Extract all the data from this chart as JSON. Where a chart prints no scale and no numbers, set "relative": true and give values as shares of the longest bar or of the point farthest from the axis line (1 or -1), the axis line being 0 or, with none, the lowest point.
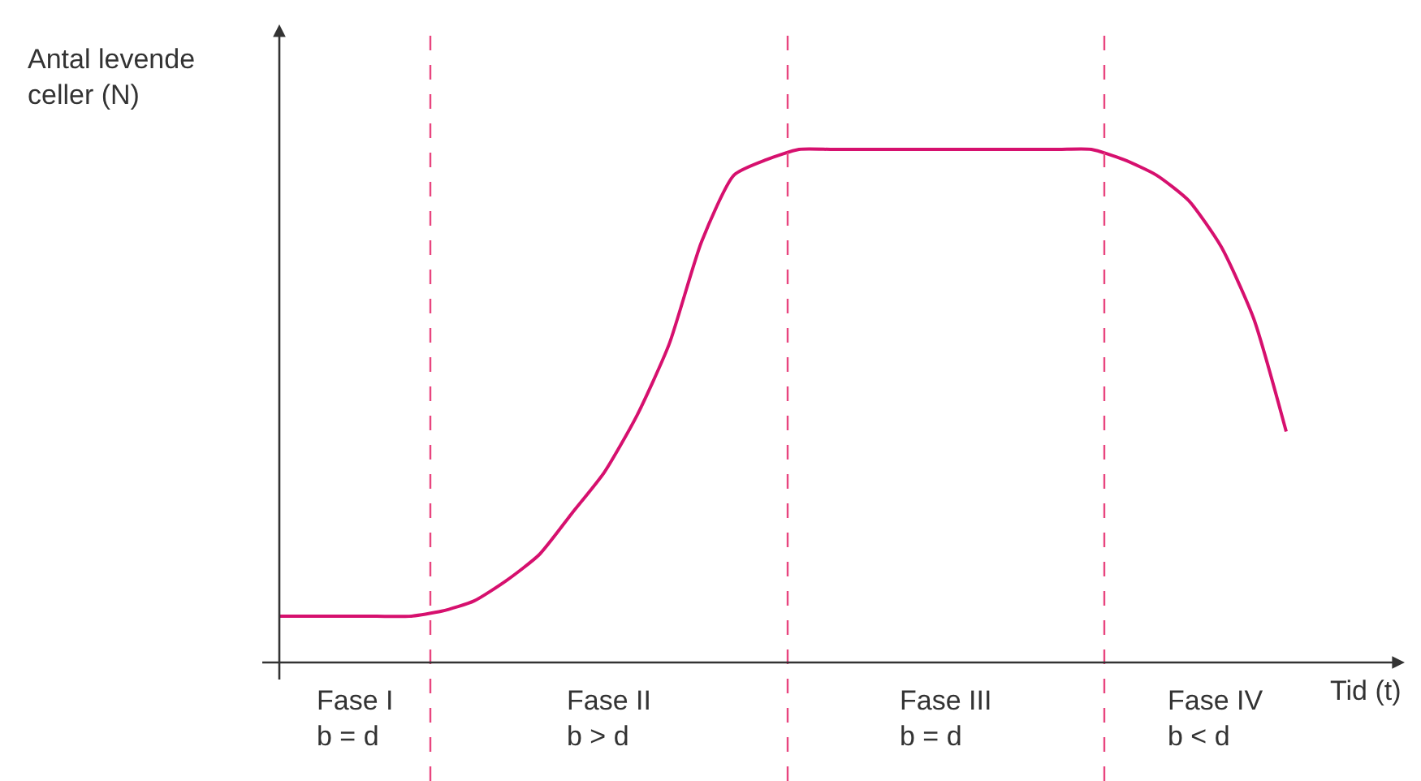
{
  "chart_data": {
    "type": "line",
    "relative": true,
    "categories": [
      null,
      null,
      null,
      null,
      null,
      null,
      null,
      null,
      null,
      null,
      null,
      null,
      null,
      null,
      null,
      null,
      null,
      null,
      null,
      null,
      null,
      null,
      null,
      null,
      null,
      null,
      null,
      null,
      null,
      null,
      null,
      null
    ],
    "series": [
      {
        "color": "#d6106e",
        "values": [
          0.09,
          0.09,
          0.09,
          0.09,
          0.09,
          0.1,
          0.12,
          0.16,
          0.21,
          0.29,
          0.37,
          0.48,
          0.62,
          0.82,
          0.95,
          0.98,
          1.0,
          1.0,
          1.0,
          1.0,
          1.0,
          1.0,
          1.0,
          1.0,
          1.0,
          1.0,
          0.98,
          0.95,
          0.9,
          0.81,
          0.67,
          0.45
        ]
      }
    ],
    "xlabel": "Tid (t)",
    "ylabel": "Antal levende\nceller (N)",
    "annotations": [
      "Fase I\nb = d",
      "Fase II\nb > d",
      "Fase III\nb = d",
      "Fase IV\nb < d"
    ],
    "legend": false,
    "marker": "none",
    "line_style": "solid"
  }
}
